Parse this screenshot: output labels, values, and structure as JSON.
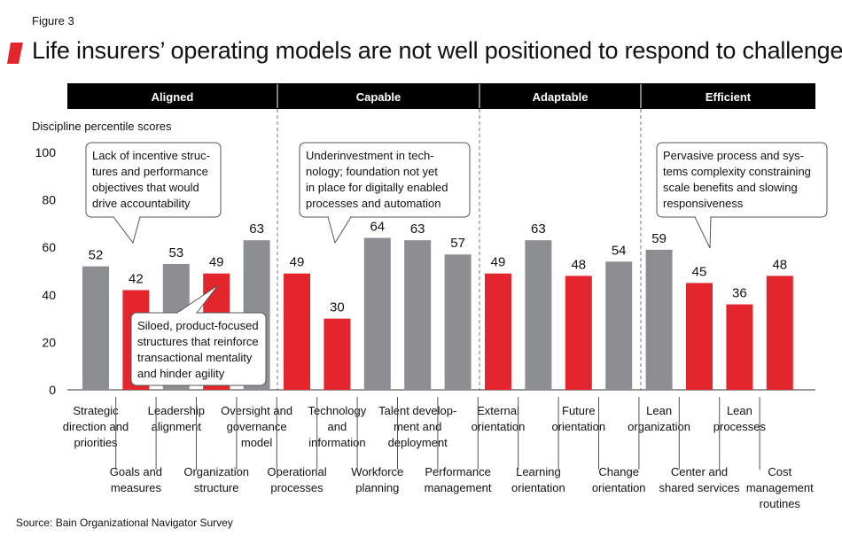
{
  "figure_label": "Figure 3",
  "title": "Life insurers’ operating models are not well positioned to respond to challenges",
  "source": "Source: Bain Organizational Navigator Survey",
  "colors": {
    "gray": "#8d8e92",
    "red": "#e3262b",
    "header": "#000000"
  },
  "chart_data": {
    "type": "bar",
    "ylabel": "Discipline percentile scores",
    "ylim": [
      0,
      100
    ],
    "yticks": [
      0,
      20,
      40,
      60,
      80,
      100
    ],
    "groups": [
      "Aligned",
      "Capable",
      "Adaptable",
      "Efficient"
    ],
    "categories": [
      {
        "label": [
          "Strategic",
          "direction and",
          "priorities"
        ],
        "value": 52,
        "color": "gray",
        "group": "Aligned",
        "row": 0
      },
      {
        "label": [
          "Goals and",
          "measures"
        ],
        "value": 42,
        "color": "red",
        "group": "Aligned",
        "row": 1
      },
      {
        "label": [
          "Leadership",
          "alignment"
        ],
        "value": 53,
        "color": "gray",
        "group": "Aligned",
        "row": 0
      },
      {
        "label": [
          "Organization",
          "structure"
        ],
        "value": 49,
        "color": "red",
        "group": "Aligned",
        "row": 1
      },
      {
        "label": [
          "Oversight and",
          "governance",
          "model"
        ],
        "value": 63,
        "color": "gray",
        "group": "Aligned",
        "row": 0
      },
      {
        "label": [
          "Operational",
          "processes"
        ],
        "value": 49,
        "color": "red",
        "group": "Capable",
        "row": 1
      },
      {
        "label": [
          "Technology",
          "and",
          "information"
        ],
        "value": 30,
        "color": "red",
        "group": "Capable",
        "row": 0
      },
      {
        "label": [
          "Workforce",
          "planning"
        ],
        "value": 64,
        "color": "gray",
        "group": "Capable",
        "row": 1
      },
      {
        "label": [
          "Talent develop-",
          "ment and",
          "deployment"
        ],
        "value": 63,
        "color": "gray",
        "group": "Capable",
        "row": 0
      },
      {
        "label": [
          "Performance",
          "management"
        ],
        "value": 57,
        "color": "gray",
        "group": "Capable",
        "row": 1
      },
      {
        "label": [
          "External",
          "orientation"
        ],
        "value": 49,
        "color": "red",
        "group": "Adaptable",
        "row": 0
      },
      {
        "label": [
          "Learning",
          "orientation"
        ],
        "value": 63,
        "color": "gray",
        "group": "Adaptable",
        "row": 1
      },
      {
        "label": [
          "Future",
          "orientation"
        ],
        "value": 48,
        "color": "red",
        "group": "Adaptable",
        "row": 0
      },
      {
        "label": [
          "Change",
          "orientation"
        ],
        "value": 54,
        "color": "gray",
        "group": "Adaptable",
        "row": 1
      },
      {
        "label": [
          "Lean",
          "organization"
        ],
        "value": 59,
        "color": "gray",
        "group": "Efficient",
        "row": 0
      },
      {
        "label": [
          "Center and",
          "shared services"
        ],
        "value": 45,
        "color": "red",
        "group": "Efficient",
        "row": 1
      },
      {
        "label": [
          "Lean",
          "processes"
        ],
        "value": 36,
        "color": "red",
        "group": "Efficient",
        "row": 0
      },
      {
        "label": [
          "Cost",
          "management",
          "routines"
        ],
        "value": 48,
        "color": "red",
        "group": "Efficient",
        "row": 1
      }
    ],
    "annotations": [
      {
        "text": [
          "Lack of incentive struc-",
          "tures and performance",
          "objectives that would",
          "drive accountability"
        ],
        "target": "Goals and measures"
      },
      {
        "text": [
          "Siloed, product-focused",
          "structures that reinforce",
          "transactional mentality",
          "and hinder agility"
        ],
        "target": "Organization structure"
      },
      {
        "text": [
          "Underinvestment in tech-",
          "nology; foundation not yet",
          "in place for digitally enabled",
          "processes and automation"
        ],
        "target": "Technology and information"
      },
      {
        "text": [
          "Pervasive process and sys-",
          "tems complexity constraining",
          "scale benefits and slowing",
          "responsiveness"
        ],
        "target": "Center and shared services"
      }
    ]
  }
}
